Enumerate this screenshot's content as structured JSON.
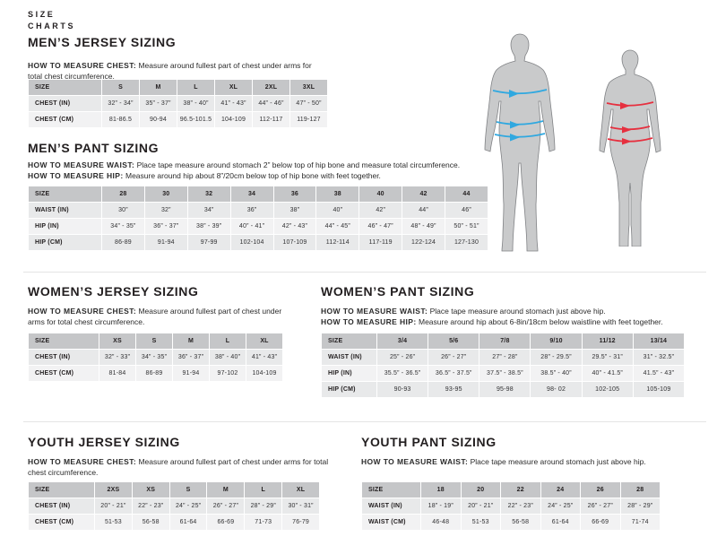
{
  "page": {
    "brand_title_line1": "SIZE",
    "brand_title_line2": "CHARTS"
  },
  "colors": {
    "male_arrow": "#2fa8e0",
    "female_arrow": "#e6303f",
    "silhouette": "#c9cacb",
    "table_header_bg": "#c5c6c8",
    "table_row_odd": "#e8e9ea",
    "table_row_even": "#f2f2f3"
  },
  "figures": {
    "male": {
      "icon": "male-silhouette-icon"
    },
    "female": {
      "icon": "female-silhouette-icon"
    }
  },
  "sections": {
    "mens_jersey": {
      "heading": "MEN’S JERSEY SIZING",
      "howto": [
        {
          "label": "HOW TO MEASURE CHEST:",
          "text": " Measure around fullest part of chest under arms for total chest circumference."
        }
      ],
      "table": {
        "headers": [
          "SIZE",
          "S",
          "M",
          "L",
          "XL",
          "2XL",
          "3XL"
        ],
        "rows": [
          [
            "CHEST (IN)",
            "32” - 34”",
            "35” - 37”",
            "38” - 40”",
            "41” - 43”",
            "44” - 46”",
            "47” - 50”"
          ],
          [
            "CHEST (CM)",
            "81-86.5",
            "90-94",
            "96.5-101.5",
            "104-109",
            "112-117",
            "119-127"
          ]
        ]
      }
    },
    "mens_pant": {
      "heading": "MEN’S PANT SIZING",
      "howto": [
        {
          "label": "HOW TO MEASURE WAIST:",
          "text": " Place tape measure around stomach 2” below top of hip bone and measure total circumference."
        },
        {
          "label": "HOW TO MEASURE HIP:",
          "text": " Measure around hip about 8”/20cm below top of hip bone with feet together."
        }
      ],
      "table": {
        "headers": [
          "SIZE",
          "28",
          "30",
          "32",
          "34",
          "36",
          "38",
          "40",
          "42",
          "44"
        ],
        "rows": [
          [
            "WAIST (IN)",
            "30”",
            "32”",
            "34”",
            "36”",
            "38”",
            "40”",
            "42”",
            "44”",
            "46”"
          ],
          [
            "HIP (IN)",
            "34” - 35”",
            "36” - 37”",
            "38” - 39”",
            "40” - 41”",
            "42” - 43”",
            "44” - 45”",
            "46” - 47”",
            "48” - 49”",
            "50” - 51”"
          ],
          [
            "HIP (CM)",
            "86-89",
            "91-94",
            "97-99",
            "102-104",
            "107-109",
            "112-114",
            "117-119",
            "122-124",
            "127-130"
          ]
        ]
      }
    },
    "womens_jersey": {
      "heading": "WOMEN’S JERSEY SIZING",
      "howto": [
        {
          "label": "HOW TO MEASURE CHEST:",
          "text": " Measure around fullest part of chest under arms for total chest circumference."
        }
      ],
      "table": {
        "headers": [
          "SIZE",
          "XS",
          "S",
          "M",
          "L",
          "XL"
        ],
        "rows": [
          [
            "CHEST (IN)",
            "32” - 33”",
            "34” - 35”",
            "36” - 37”",
            "38” - 40”",
            "41” - 43”"
          ],
          [
            "CHEST (CM)",
            "81-84",
            "86-89",
            "91-94",
            "97-102",
            "104-109"
          ]
        ]
      }
    },
    "womens_pant": {
      "heading": "WOMEN’S PANT SIZING",
      "howto": [
        {
          "label": "HOW TO MEASURE WAIST:",
          "text": " Place tape measure around stomach just above hip."
        },
        {
          "label": "HOW TO MEASURE HIP:",
          "text": " Measure around hip about 6-8in/18cm below waistline with feet together."
        }
      ],
      "table": {
        "headers": [
          "SIZE",
          "3/4",
          "5/6",
          "7/8",
          "9/10",
          "11/12",
          "13/14"
        ],
        "rows": [
          [
            "WAIST (IN)",
            "25” - 26”",
            "26” - 27”",
            "27” - 28”",
            "28” - 29.5”",
            "29.5” - 31”",
            "31” - 32.5”"
          ],
          [
            "HIP (IN)",
            "35.5” - 36.5”",
            "36.5” - 37.5”",
            "37.5” - 38.5”",
            "38.5” - 40”",
            "40” - 41.5”",
            "41.5” - 43”"
          ],
          [
            "HIP (CM)",
            "90-93",
            "93-95",
            "95-98",
            "98- 02",
            "102-105",
            "105-109"
          ]
        ]
      }
    },
    "youth_jersey": {
      "heading": "YOUTH JERSEY SIZING",
      "howto": [
        {
          "label": "HOW TO MEASURE CHEST:",
          "text": " Measure around fullest part of chest under arms for total chest circumference."
        }
      ],
      "table": {
        "headers": [
          "SIZE",
          "2XS",
          "XS",
          "S",
          "M",
          "L",
          "XL"
        ],
        "rows": [
          [
            "CHEST (IN)",
            "20” - 21”",
            "22” - 23”",
            "24” - 25”",
            "26” - 27”",
            "28” - 29”",
            "30” - 31”"
          ],
          [
            "CHEST (CM)",
            "51-53",
            "56-58",
            "61-64",
            "66-69",
            "71-73",
            "76-79"
          ]
        ]
      }
    },
    "youth_pant": {
      "heading": "YOUTH PANT SIZING",
      "howto": [
        {
          "label": "HOW TO MEASURE WAIST:",
          "text": " Place tape measure around stomach just above hip."
        }
      ],
      "table": {
        "headers": [
          "SIZE",
          "18",
          "20",
          "22",
          "24",
          "26",
          "28"
        ],
        "rows": [
          [
            "WAIST (IN)",
            "18” - 19”",
            "20” - 21”",
            "22” - 23”",
            "24” - 25”",
            "26” - 27”",
            "28” - 29”"
          ],
          [
            "WAIST (CM)",
            "46-48",
            "51-53",
            "56-58",
            "61-64",
            "66-69",
            "71-74"
          ]
        ]
      }
    }
  }
}
